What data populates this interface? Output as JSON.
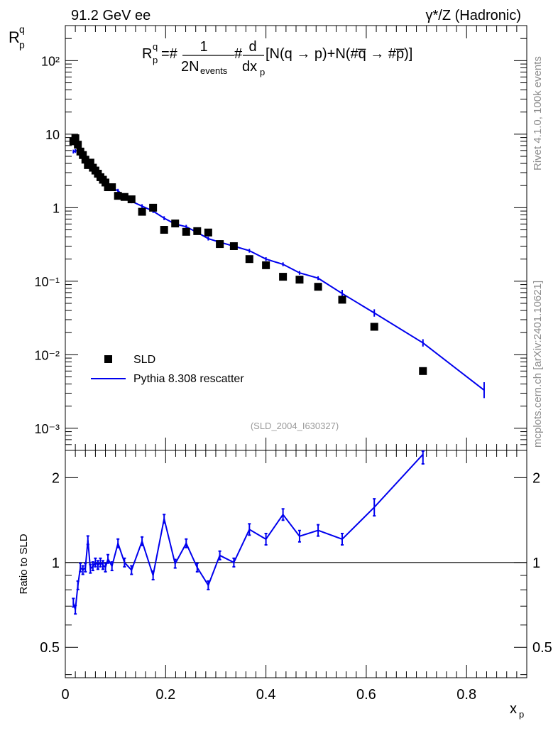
{
  "header": {
    "left": "91.2 GeV ee",
    "right": "γ*/Z (Hadronic)"
  },
  "side_labels": {
    "rivet": "Rivet 4.1.0,  100k events",
    "mcplots": "mcplots.cern.ch [arXiv:2401.10621]"
  },
  "formula": {
    "r": "R",
    "r_sup": "q",
    "r_sub": "p",
    "eq": "=#",
    "numerator_1": "1",
    "denominator_1": "2N",
    "denominator_1_sub": "events",
    "hash": "#",
    "numerator_2": "d",
    "denominator_2": "dx",
    "denominator_2_sub": "p",
    "bracket": "[N(q → p)+N(#q̅ → #p̅)]"
  },
  "watermark": "(SLD_2004_I630327)",
  "colors": {
    "data": "#000000",
    "mc": "#0000ee",
    "axis": "#000000"
  },
  "chart_data": [
    {
      "type": "scatter",
      "name": "main",
      "ylabel": "R",
      "ylabel_sup": "q",
      "ylabel_sub": "p",
      "yscale": "log",
      "xlim": [
        0,
        0.92
      ],
      "ylim": [
        0.0005,
        300
      ],
      "y_tick_labels": [
        "10⁻³",
        "10⁻²",
        "10⁻¹",
        "1",
        "10",
        "10²"
      ],
      "legend": {
        "position": "lower-left",
        "entries": [
          "SLD",
          "Pythia 8.308 rescatter"
        ]
      },
      "series": [
        {
          "name": "SLD",
          "style": "markers",
          "x": [
            0.016,
            0.02,
            0.025,
            0.03,
            0.035,
            0.04,
            0.045,
            0.05,
            0.055,
            0.06,
            0.065,
            0.07,
            0.075,
            0.08,
            0.085,
            0.093,
            0.105,
            0.118,
            0.132,
            0.153,
            0.175,
            0.197,
            0.219,
            0.241,
            0.263,
            0.285,
            0.308,
            0.336,
            0.367,
            0.4,
            0.434,
            0.467,
            0.504,
            0.552,
            0.616,
            0.713
          ],
          "y": [
            8.0,
            8.8,
            7.2,
            5.8,
            5.2,
            4.5,
            3.8,
            4.1,
            3.5,
            3.2,
            2.9,
            2.6,
            2.4,
            2.2,
            1.9,
            1.9,
            1.45,
            1.4,
            1.3,
            0.88,
            1.0,
            0.5,
            0.61,
            0.47,
            0.48,
            0.46,
            0.32,
            0.3,
            0.2,
            0.165,
            0.115,
            0.105,
            0.084,
            0.056,
            0.024,
            0.006
          ]
        },
        {
          "name": "Pythia 8.308 rescatter",
          "style": "line",
          "x": [
            0.016,
            0.02,
            0.025,
            0.03,
            0.035,
            0.04,
            0.045,
            0.05,
            0.055,
            0.06,
            0.065,
            0.07,
            0.075,
            0.08,
            0.085,
            0.093,
            0.105,
            0.118,
            0.132,
            0.153,
            0.175,
            0.197,
            0.219,
            0.241,
            0.263,
            0.285,
            0.308,
            0.336,
            0.367,
            0.4,
            0.434,
            0.467,
            0.504,
            0.552,
            0.616,
            0.713,
            0.835
          ],
          "y": [
            5.8,
            5.9,
            6.0,
            5.6,
            4.9,
            4.3,
            4.6,
            3.9,
            3.4,
            3.2,
            2.85,
            2.6,
            2.35,
            2.1,
            1.95,
            1.85,
            1.7,
            1.4,
            1.22,
            1.05,
            0.9,
            0.72,
            0.6,
            0.55,
            0.46,
            0.38,
            0.34,
            0.3,
            0.26,
            0.2,
            0.17,
            0.13,
            0.11,
            0.068,
            0.037,
            0.0145,
            0.0033
          ]
        }
      ]
    },
    {
      "type": "line",
      "name": "ratio",
      "ylabel": "Ratio to SLD",
      "xlabel": "x",
      "xlabel_sub": "p",
      "yscale": "log",
      "xlim": [
        0,
        0.92
      ],
      "ylim": [
        0.39,
        2.5
      ],
      "reference_line": 1,
      "y_tick_labels": [
        "0.5",
        "1",
        "2"
      ],
      "x_tick_labels": [
        "0",
        "0.2",
        "0.4",
        "0.6",
        "0.8"
      ],
      "series": [
        {
          "name": "Pythia 8.308 rescatter / SLD",
          "x": [
            0.016,
            0.02,
            0.025,
            0.03,
            0.035,
            0.04,
            0.045,
            0.05,
            0.055,
            0.06,
            0.065,
            0.07,
            0.075,
            0.08,
            0.085,
            0.093,
            0.105,
            0.118,
            0.132,
            0.153,
            0.175,
            0.197,
            0.219,
            0.241,
            0.263,
            0.285,
            0.308,
            0.336,
            0.367,
            0.4,
            0.434,
            0.467,
            0.504,
            0.552,
            0.616,
            0.713
          ],
          "y": [
            0.72,
            0.68,
            0.83,
            0.96,
            0.94,
            0.96,
            1.2,
            0.95,
            0.97,
            1.0,
            0.98,
            1.0,
            0.98,
            0.96,
            1.03,
            0.97,
            1.17,
            1.0,
            0.94,
            1.19,
            0.9,
            1.43,
            0.99,
            1.17,
            0.96,
            0.83,
            1.06,
            1.0,
            1.31,
            1.21,
            1.48,
            1.24,
            1.3,
            1.21,
            1.57,
            2.42
          ]
        }
      ]
    }
  ]
}
